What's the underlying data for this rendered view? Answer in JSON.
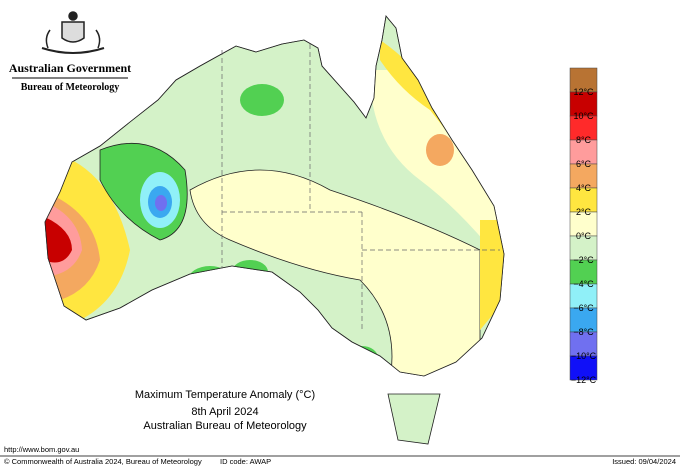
{
  "header": {
    "agency": "Australian Government",
    "bureau": "Bureau of Meteorology"
  },
  "legend": {
    "colors": [
      "#b87333",
      "#c80000",
      "#ff2a2a",
      "#ff9c9c",
      "#f4a860",
      "#ffe640",
      "#ffffcc",
      "#d4f2c8",
      "#52d052",
      "#90f0f8",
      "#3aa8f0",
      "#7070f0",
      "#1010f8"
    ],
    "labels": [
      "12°C",
      "10°C",
      "8°C",
      "6°C",
      "4°C",
      "2°C",
      "0°C",
      "−2°C",
      "−4°C",
      "−6°C",
      "−8°C",
      "−10°C",
      "−12°C"
    ]
  },
  "caption": {
    "title": "Maximum Temperature Anomaly (°C)",
    "date": "8th April 2024",
    "source": "Australian Bureau of Meteorology"
  },
  "footer": {
    "url": "http://www.bom.gov.au",
    "copyright": "© Commonwealth of Australia 2024, Bureau of Meteorology",
    "id_code": "ID code: AWAP",
    "issued": "Issued: 09/04/2024"
  }
}
